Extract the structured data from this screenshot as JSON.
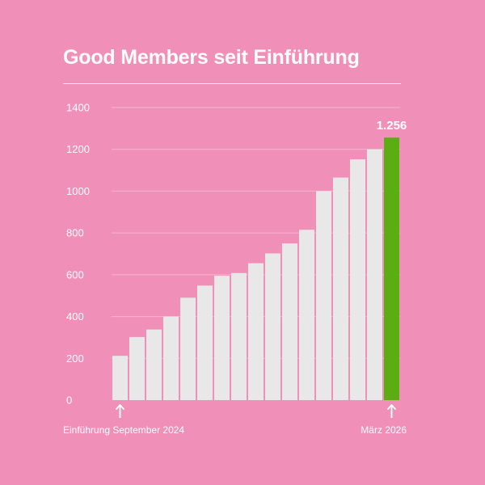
{
  "colors": {
    "background": "#f08fb8",
    "bar": "#e8e8e8",
    "highlight": "#5aae12",
    "text": "#ffffff"
  },
  "chart_data": {
    "type": "bar",
    "title": "Good Members seit Einführung",
    "xlabel": "",
    "ylabel": "",
    "ylim": [
      0,
      1400
    ],
    "yticks": [
      0,
      200,
      400,
      600,
      800,
      1000,
      1200,
      1400
    ],
    "grid": true,
    "values": [
      212,
      302,
      338,
      400,
      490,
      548,
      595,
      608,
      655,
      702,
      750,
      815,
      1000,
      1065,
      1152,
      1200,
      1256
    ],
    "highlight_index": 16,
    "highlight_label": "1.256",
    "start_annotation": "Einführung September 2024",
    "end_annotation": "März 2026",
    "annotation_icon": "arrow-up-icon"
  }
}
